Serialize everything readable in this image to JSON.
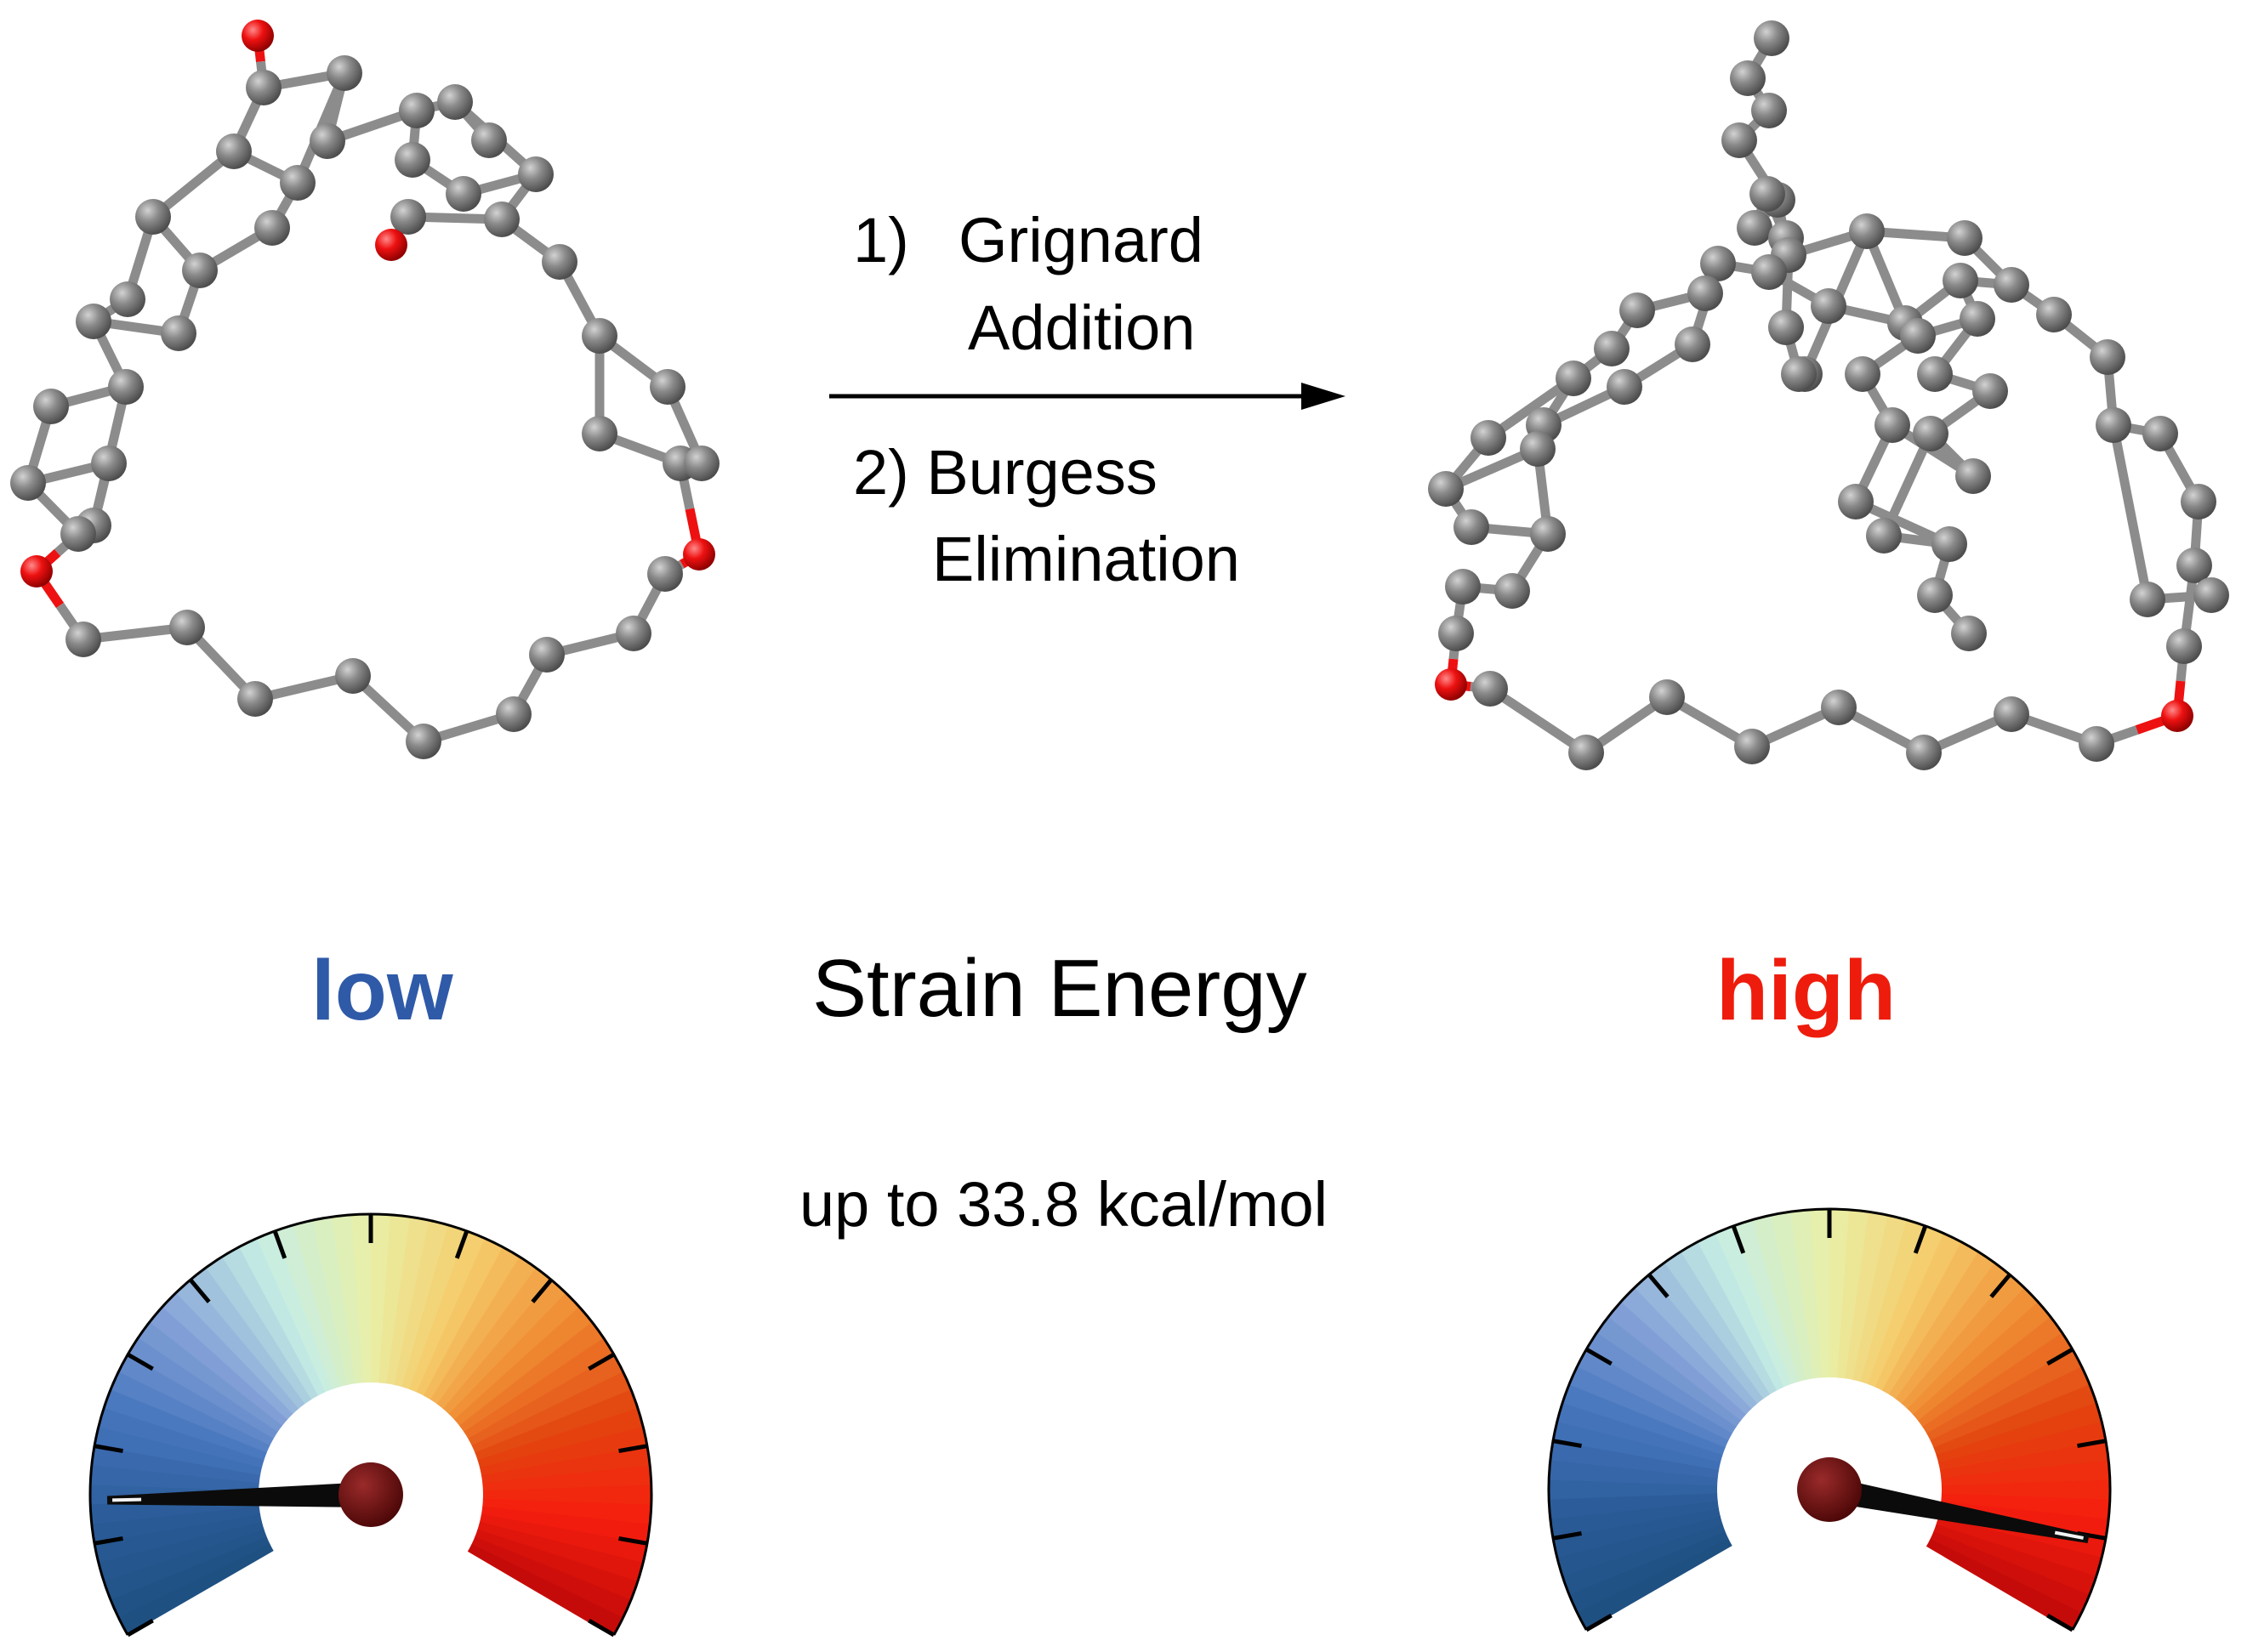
{
  "reaction": {
    "step1_number": "1)",
    "step1_line1": "Grignard",
    "step1_line2": "Addition",
    "step2_line1": "2) Burgess",
    "step2_line2": "Elimination"
  },
  "strain": {
    "title": "Strain Energy",
    "low_label": "low",
    "high_label": "high",
    "max_value": "up to 33.8 kcal/mol"
  },
  "colors": {
    "carbon": "#808080",
    "oxygen": "#ee1111",
    "bond": "#8c8c8c",
    "low_text": "#2f5aa8",
    "high_text": "#ee1c0c",
    "needle": "#0b0b0b",
    "hub": "#6b0f0f"
  },
  "gauges": [
    {
      "name": "low",
      "level": 0.12
    },
    {
      "name": "high",
      "level": 0.92
    }
  ]
}
